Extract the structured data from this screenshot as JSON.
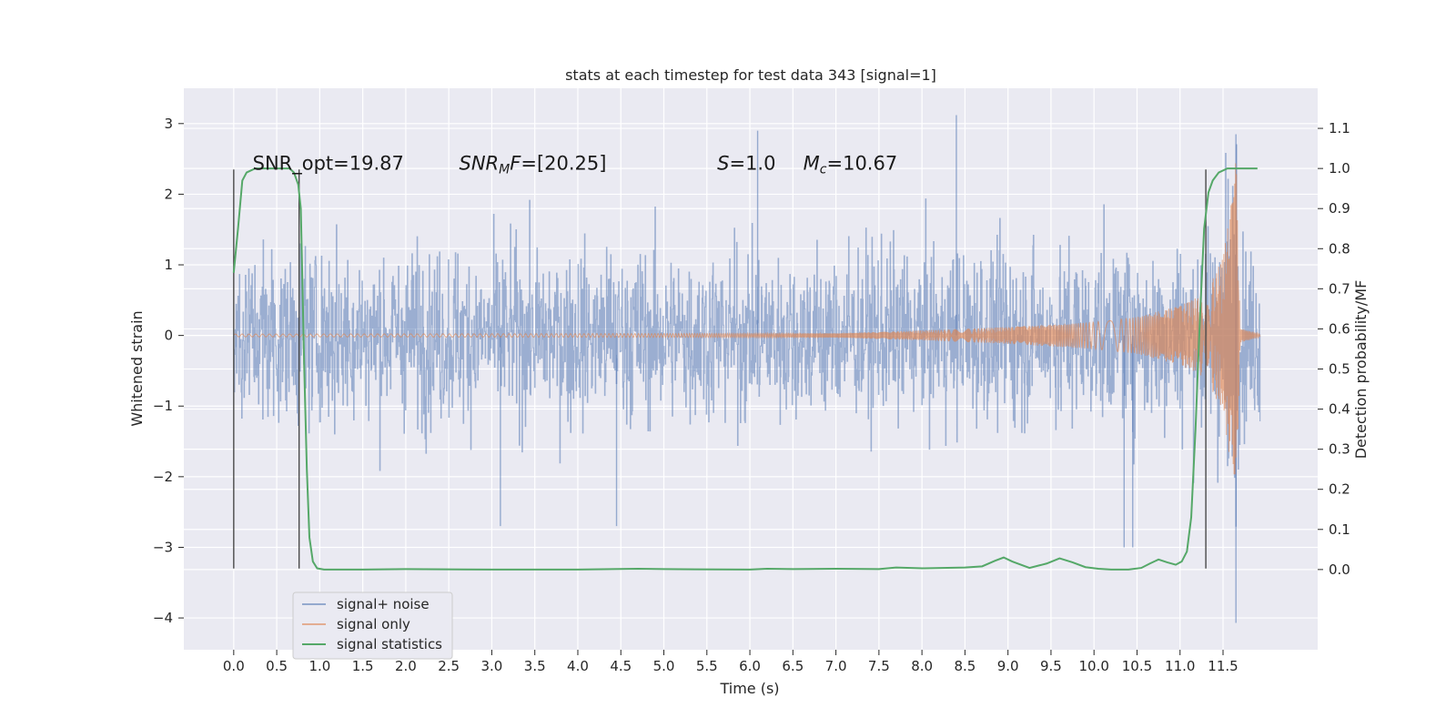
{
  "chart_data": {
    "type": "line",
    "title": "stats at each timestep for test data 343 [signal=1]",
    "xlabel": "Time (s)",
    "ylabel_left": "Whitened strain",
    "ylabel_right": "Detection probability/MF",
    "xlim": [
      -0.58,
      12.6
    ],
    "ylim_left": [
      -4.45,
      3.5
    ],
    "ylim_right": [
      -0.2,
      1.2
    ],
    "x_ticks": [
      0.0,
      0.5,
      1.0,
      1.5,
      2.0,
      2.5,
      3.0,
      3.5,
      4.0,
      4.5,
      5.0,
      5.5,
      6.0,
      6.5,
      7.0,
      7.5,
      8.0,
      8.5,
      9.0,
      9.5,
      10.0,
      10.5,
      11.0,
      11.5
    ],
    "x_tick_labels": [
      "0.0",
      "0.5",
      "1.0",
      "1.5",
      "2.0",
      "2.5",
      "3.0",
      "3.5",
      "4.0",
      "4.5",
      "5.0",
      "5.5",
      "6.0",
      "6.5",
      "7.0",
      "7.5",
      "8.0",
      "8.5",
      "9.0",
      "9.5",
      "10.0",
      "10.5",
      "11.0",
      "11.5"
    ],
    "y_ticks_left": [
      -4,
      -3,
      -2,
      -1,
      0,
      1,
      2,
      3
    ],
    "y_tick_labels_left": [
      "−4",
      "−3",
      "−2",
      "−1",
      "0",
      "1",
      "2",
      "3"
    ],
    "y_ticks_right": [
      0.0,
      0.1,
      0.2,
      0.3,
      0.4,
      0.5,
      0.6,
      0.7,
      0.8,
      0.9,
      1.0,
      1.1
    ],
    "y_tick_labels_right": [
      "0.0",
      "0.1",
      "0.2",
      "0.3",
      "0.4",
      "0.5",
      "0.6",
      "0.7",
      "0.8",
      "0.9",
      "1.0",
      "1.1"
    ],
    "grid": true,
    "legend_position": "lower-left",
    "series": [
      {
        "name": "signal+ noise",
        "color": "#4c72b0",
        "description_values": "noise envelope",
        "x_range": [
          0.0,
          11.93
        ],
        "y_envelope": [
          -2.0,
          2.0
        ],
        "notable_peaks": [
          {
            "x": 6.09,
            "y": 2.9
          },
          {
            "x": 8.4,
            "y": 3.12
          },
          {
            "x": 11.65,
            "y": 2.85
          },
          {
            "x": 11.65,
            "y": -4.07
          },
          {
            "x": 10.35,
            "y": -3.0
          },
          {
            "x": 10.45,
            "y": -3.0
          },
          {
            "x": 3.1,
            "y": -2.7
          },
          {
            "x": 4.45,
            "y": -2.7
          }
        ]
      },
      {
        "name": "signal only",
        "color": "#dd8452",
        "description_values": "chirp",
        "amplitude_x": [
          0.0,
          7.0,
          8.0,
          9.0,
          10.0,
          10.5,
          11.0,
          11.3,
          11.5,
          11.6,
          11.65,
          11.7,
          11.93
        ],
        "amplitude_y": [
          0.02,
          0.03,
          0.07,
          0.12,
          0.19,
          0.26,
          0.42,
          0.6,
          1.1,
          1.9,
          2.6,
          0.1,
          0.02
        ]
      },
      {
        "name": "signal statistics",
        "color": "#55a868",
        "axis": "right",
        "x": [
          0.0,
          0.05,
          0.1,
          0.15,
          0.25,
          0.35,
          0.45,
          0.55,
          0.65,
          0.7,
          0.75,
          0.78,
          0.82,
          0.85,
          0.88,
          0.92,
          0.97,
          1.05,
          1.5,
          2.0,
          3.0,
          4.0,
          4.7,
          5.0,
          6.0,
          6.2,
          6.5,
          7.0,
          7.5,
          7.7,
          8.0,
          8.5,
          8.7,
          8.85,
          8.95,
          9.05,
          9.25,
          9.45,
          9.6,
          9.75,
          9.9,
          10.05,
          10.2,
          10.4,
          10.55,
          10.65,
          10.75,
          10.85,
          10.95,
          11.02,
          11.08,
          11.13,
          11.18,
          11.23,
          11.28,
          11.33,
          11.38,
          11.45,
          11.55,
          11.65,
          11.75,
          11.85,
          11.9
        ],
        "y": [
          0.74,
          0.85,
          0.97,
          0.99,
          1.0,
          1.0,
          1.0,
          1.0,
          1.0,
          0.99,
          0.96,
          0.9,
          0.5,
          0.25,
          0.08,
          0.02,
          0.003,
          0.0,
          0.0,
          0.001,
          0.0,
          0.0,
          0.002,
          0.001,
          0.0,
          0.002,
          0.001,
          0.002,
          0.001,
          0.005,
          0.003,
          0.005,
          0.008,
          0.022,
          0.03,
          0.02,
          0.004,
          0.015,
          0.028,
          0.018,
          0.006,
          0.002,
          0.0,
          0.0,
          0.004,
          0.015,
          0.025,
          0.018,
          0.012,
          0.02,
          0.045,
          0.13,
          0.35,
          0.62,
          0.85,
          0.94,
          0.97,
          0.99,
          1.0,
          1.0,
          1.0,
          1.0,
          1.0
        ]
      }
    ],
    "vlines": [
      {
        "x": 0.0,
        "y_from": -3.3,
        "y_to": 2.35
      },
      {
        "x": 0.76,
        "y_from": -3.3,
        "y_to": 2.35
      },
      {
        "x": 11.3,
        "y_from": -3.3,
        "y_to": 2.35
      }
    ],
    "annotations": [
      {
        "x": 0.22,
        "y": 2.35,
        "parts": [
          {
            "text": "SNR_opt=19.87",
            "italic": false
          }
        ]
      },
      {
        "x": 2.62,
        "y": 2.35,
        "parts": [
          {
            "text": "SNR",
            "italic": true
          },
          {
            "text": "M",
            "italic": true,
            "sub": true
          },
          {
            "text": "F",
            "italic": true
          },
          {
            "text": "=[20.25]",
            "italic": false
          }
        ]
      },
      {
        "x": 5.62,
        "y": 2.35,
        "parts": [
          {
            "text": "S",
            "italic": true
          },
          {
            "text": "=1.0",
            "italic": false
          }
        ]
      },
      {
        "x": 6.62,
        "y": 2.35,
        "parts": [
          {
            "text": "M",
            "italic": true
          },
          {
            "text": "c",
            "italic": true,
            "sub": true
          },
          {
            "text": "=10.67",
            "italic": false
          }
        ]
      }
    ]
  }
}
